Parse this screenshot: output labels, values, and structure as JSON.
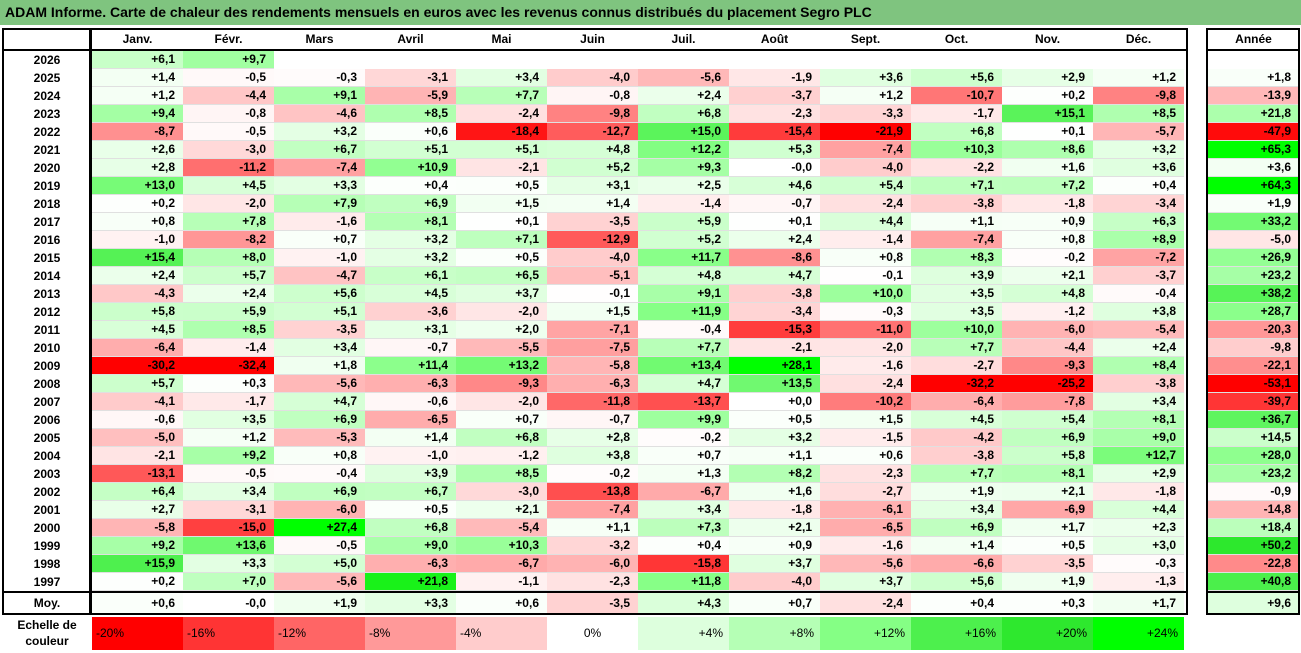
{
  "title": "ADAM Informe. Carte de chaleur des rendements mensuels en euros avec les revenus connus distribués du placement Segro PLC",
  "chart_data": {
    "type": "heatmap",
    "months": [
      "Janv.",
      "Févr.",
      "Mars",
      "Avril",
      "Mai",
      "Juin",
      "Juil.",
      "Août",
      "Sept.",
      "Oct.",
      "Nov.",
      "Déc."
    ],
    "annual_header": "Année",
    "rows": [
      {
        "year": "2026",
        "values": [
          "+6,1",
          "+9,7",
          "",
          "",
          "",
          "",
          "",
          "",
          "",
          "",
          "",
          ""
        ],
        "annual": ""
      },
      {
        "year": "2025",
        "values": [
          "+1,4",
          "-0,5",
          "-0,3",
          "-3,1",
          "+3,4",
          "-4,0",
          "-5,6",
          "-1,9",
          "+3,6",
          "+5,6",
          "+2,9",
          "+1,2"
        ],
        "annual": "+1,8"
      },
      {
        "year": "2024",
        "values": [
          "+1,2",
          "-4,4",
          "+9,1",
          "-5,9",
          "+7,7",
          "-0,8",
          "+2,4",
          "-3,7",
          "+1,2",
          "-10,7",
          "+0,2",
          "-9,8"
        ],
        "annual": "-13,9"
      },
      {
        "year": "2023",
        "values": [
          "+9,4",
          "-0,8",
          "-4,6",
          "+8,5",
          "-2,4",
          "-9,8",
          "+6,8",
          "-2,3",
          "-3,3",
          "-1,7",
          "+15,1",
          "+8,5"
        ],
        "annual": "+21,8"
      },
      {
        "year": "2022",
        "values": [
          "-8,7",
          "-0,5",
          "+3,2",
          "+0,6",
          "-18,4",
          "-12,7",
          "+15,0",
          "-15,4",
          "-21,9",
          "+6,8",
          "+0,1",
          "-5,7"
        ],
        "annual": "-47,9"
      },
      {
        "year": "2021",
        "values": [
          "+2,6",
          "-3,0",
          "+6,7",
          "+5,1",
          "+5,1",
          "+4,8",
          "+12,2",
          "+5,3",
          "-7,4",
          "+10,3",
          "+8,6",
          "+3,2"
        ],
        "annual": "+65,3"
      },
      {
        "year": "2020",
        "values": [
          "+2,8",
          "-11,2",
          "-7,4",
          "+10,9",
          "-2,1",
          "+5,2",
          "+9,3",
          "-0,0",
          "-4,0",
          "-2,2",
          "+1,6",
          "+3,6"
        ],
        "annual": "+3,6"
      },
      {
        "year": "2019",
        "values": [
          "+13,0",
          "+4,5",
          "+3,3",
          "+0,4",
          "+0,5",
          "+3,1",
          "+2,5",
          "+4,6",
          "+5,4",
          "+7,1",
          "+7,2",
          "+0,4"
        ],
        "annual": "+64,3"
      },
      {
        "year": "2018",
        "values": [
          "+0,2",
          "-2,0",
          "+7,9",
          "+6,9",
          "+1,5",
          "+1,4",
          "-1,4",
          "-0,7",
          "-2,4",
          "-3,8",
          "-1,8",
          "-3,4"
        ],
        "annual": "+1,9"
      },
      {
        "year": "2017",
        "values": [
          "+0,8",
          "+7,8",
          "-1,6",
          "+8,1",
          "+0,1",
          "-3,5",
          "+5,9",
          "+0,1",
          "+4,4",
          "+1,1",
          "+0,9",
          "+6,3"
        ],
        "annual": "+33,2"
      },
      {
        "year": "2016",
        "values": [
          "-1,0",
          "-8,2",
          "+0,7",
          "+3,2",
          "+7,1",
          "-12,9",
          "+5,2",
          "+2,4",
          "-1,4",
          "-7,4",
          "+0,8",
          "+8,9"
        ],
        "annual": "-5,0"
      },
      {
        "year": "2015",
        "values": [
          "+15,4",
          "+8,0",
          "-1,0",
          "+3,2",
          "+0,5",
          "-4,0",
          "+11,7",
          "-8,6",
          "+0,8",
          "+8,3",
          "-0,2",
          "-7,2"
        ],
        "annual": "+26,9"
      },
      {
        "year": "2014",
        "values": [
          "+2,4",
          "+5,7",
          "-4,7",
          "+6,1",
          "+6,5",
          "-5,1",
          "+4,8",
          "+4,7",
          "-0,1",
          "+3,9",
          "+2,1",
          "-3,7"
        ],
        "annual": "+23,2"
      },
      {
        "year": "2013",
        "values": [
          "-4,3",
          "+2,4",
          "+5,6",
          "+4,5",
          "+3,7",
          "-0,1",
          "+9,1",
          "-3,8",
          "+10,0",
          "+3,5",
          "+4,8",
          "-0,4"
        ],
        "annual": "+38,2"
      },
      {
        "year": "2012",
        "values": [
          "+5,8",
          "+5,9",
          "+5,1",
          "-3,6",
          "-2,0",
          "+1,5",
          "+11,9",
          "-3,4",
          "-0,3",
          "+3,5",
          "-1,2",
          "+3,8"
        ],
        "annual": "+28,7"
      },
      {
        "year": "2011",
        "values": [
          "+4,5",
          "+8,5",
          "-3,5",
          "+3,1",
          "+2,0",
          "-7,1",
          "-0,4",
          "-15,3",
          "-11,0",
          "+10,0",
          "-6,0",
          "-5,4"
        ],
        "annual": "-20,3"
      },
      {
        "year": "2010",
        "values": [
          "-6,4",
          "-1,4",
          "+3,4",
          "-0,7",
          "-5,5",
          "-7,5",
          "+7,7",
          "-2,1",
          "-2,0",
          "+7,7",
          "-4,4",
          "+2,4"
        ],
        "annual": "-9,8"
      },
      {
        "year": "2009",
        "values": [
          "-30,2",
          "-32,4",
          "+1,8",
          "+11,4",
          "+13,2",
          "-5,8",
          "+13,4",
          "+28,1",
          "-1,6",
          "-2,7",
          "-9,3",
          "+8,4"
        ],
        "annual": "-22,1"
      },
      {
        "year": "2008",
        "values": [
          "+5,7",
          "+0,3",
          "-5,6",
          "-6,3",
          "-9,3",
          "-6,3",
          "+4,7",
          "+13,5",
          "-2,4",
          "-32,2",
          "-25,2",
          "-3,8"
        ],
        "annual": "-53,1"
      },
      {
        "year": "2007",
        "values": [
          "-4,1",
          "-1,7",
          "+4,7",
          "-0,6",
          "-2,0",
          "-11,8",
          "-13,7",
          "+0,0",
          "-10,2",
          "-6,4",
          "-7,8",
          "+3,4"
        ],
        "annual": "-39,7"
      },
      {
        "year": "2006",
        "values": [
          "-0,6",
          "+3,5",
          "+6,9",
          "-6,5",
          "+0,7",
          "-0,7",
          "+9,9",
          "+0,5",
          "+1,5",
          "+4,5",
          "+5,4",
          "+8,1"
        ],
        "annual": "+36,7"
      },
      {
        "year": "2005",
        "values": [
          "-5,0",
          "+1,2",
          "-5,3",
          "+1,4",
          "+6,8",
          "+2,8",
          "-0,2",
          "+3,2",
          "-1,5",
          "-4,2",
          "+6,9",
          "+9,0"
        ],
        "annual": "+14,5"
      },
      {
        "year": "2004",
        "values": [
          "-2,1",
          "+9,2",
          "+0,8",
          "-1,0",
          "-1,2",
          "+3,8",
          "+0,7",
          "+1,1",
          "+0,6",
          "-3,8",
          "+5,8",
          "+12,7"
        ],
        "annual": "+28,0"
      },
      {
        "year": "2003",
        "values": [
          "-13,1",
          "-0,5",
          "-0,4",
          "+3,9",
          "+8,5",
          "-0,2",
          "+1,3",
          "+8,2",
          "-2,3",
          "+7,7",
          "+8,1",
          "+2,9"
        ],
        "annual": "+23,2"
      },
      {
        "year": "2002",
        "values": [
          "+6,4",
          "+3,4",
          "+6,9",
          "+6,7",
          "-3,0",
          "-13,8",
          "-6,7",
          "+1,6",
          "-2,7",
          "+1,9",
          "+2,1",
          "-1,8"
        ],
        "annual": "-0,9"
      },
      {
        "year": "2001",
        "values": [
          "+2,7",
          "-3,1",
          "-6,0",
          "+0,5",
          "+2,1",
          "-7,4",
          "+3,4",
          "-1,8",
          "-6,1",
          "+3,4",
          "-6,9",
          "+4,4"
        ],
        "annual": "-14,8"
      },
      {
        "year": "2000",
        "values": [
          "-5,8",
          "-15,0",
          "+27,4",
          "+6,8",
          "-5,4",
          "+1,1",
          "+7,3",
          "+2,1",
          "-6,5",
          "+6,9",
          "+1,7",
          "+2,3"
        ],
        "annual": "+18,4"
      },
      {
        "year": "1999",
        "values": [
          "+9,2",
          "+13,6",
          "-0,5",
          "+9,0",
          "+10,3",
          "-3,2",
          "+0,4",
          "+0,9",
          "-1,6",
          "+1,4",
          "+0,5",
          "+3,0"
        ],
        "annual": "+50,2"
      },
      {
        "year": "1998",
        "values": [
          "+15,9",
          "+3,3",
          "+5,0",
          "-6,3",
          "-6,7",
          "-6,0",
          "-15,8",
          "+3,7",
          "-5,6",
          "-6,6",
          "-3,5",
          "-0,3"
        ],
        "annual": "-22,8"
      },
      {
        "year": "1997",
        "values": [
          "+0,2",
          "+7,0",
          "-5,6",
          "+21,8",
          "-1,1",
          "-2,3",
          "+11,8",
          "-4,0",
          "+3,7",
          "+5,6",
          "+1,9",
          "-1,3"
        ],
        "annual": "+40,8"
      }
    ],
    "average": {
      "label": "Moy.",
      "values": [
        "+0,6",
        "-0,0",
        "+1,9",
        "+3,3",
        "+0,6",
        "-3,5",
        "+4,3",
        "+0,7",
        "-2,4",
        "+0,4",
        "+0,3",
        "+1,7"
      ],
      "annual": "+9,6"
    },
    "scale": {
      "label_line1": "Echelle de",
      "label_line2": "couleur",
      "items": [
        {
          "label": "-20%",
          "color": "#ff0000"
        },
        {
          "label": "-16%",
          "color": "#ff3434"
        },
        {
          "label": "-12%",
          "color": "#ff6565"
        },
        {
          "label": "-8%",
          "color": "#ff9999"
        },
        {
          "label": "-4%",
          "color": "#ffcccc"
        },
        {
          "label": "0%",
          "color": "#ffffff"
        },
        {
          "label": "+4%",
          "color": "#ddffdd"
        },
        {
          "label": "+8%",
          "color": "#b5ffb5"
        },
        {
          "label": "+12%",
          "color": "#85ff85"
        },
        {
          "label": "+16%",
          "color": "#4df04d"
        },
        {
          "label": "+20%",
          "color": "#2ee82e"
        },
        {
          "label": "+24%",
          "color": "#00ff00"
        }
      ]
    }
  }
}
